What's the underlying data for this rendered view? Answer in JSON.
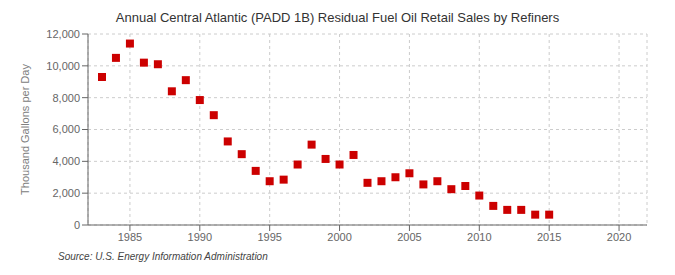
{
  "chart_data": {
    "type": "scatter",
    "title": "Annual Central Atlantic (PADD 1B) Residual Fuel Oil Retail Sales by Refiners",
    "ylabel": "Thousand Gallons per Day",
    "annotations": [
      "Source: U.S. Energy Information Administration"
    ],
    "x": [
      1983,
      1984,
      1985,
      1986,
      1987,
      1988,
      1989,
      1990,
      1991,
      1992,
      1993,
      1994,
      1995,
      1996,
      1997,
      1998,
      1999,
      2000,
      2001,
      2002,
      2003,
      2004,
      2005,
      2006,
      2007,
      2008,
      2009,
      2010,
      2011,
      2012,
      2013,
      2014,
      2015
    ],
    "values": [
      9300,
      10500,
      11400,
      10200,
      10100,
      8400,
      9100,
      7850,
      6900,
      5250,
      4450,
      3400,
      2750,
      2850,
      3800,
      5050,
      4150,
      3800,
      4400,
      2650,
      2750,
      3000,
      3250,
      2550,
      2750,
      2250,
      2450,
      1850,
      1200,
      950,
      950,
      650,
      650
    ],
    "color": "#cc0000",
    "marker": "square",
    "xlim": [
      1982,
      2022
    ],
    "xticks": [
      1985,
      1990,
      1995,
      2000,
      2005,
      2010,
      2015,
      2020
    ],
    "ylim": [
      0,
      12000
    ],
    "yticks": [
      0,
      {
        "value": 2000,
        "label": "2,000"
      },
      {
        "value": 4000,
        "label": "4,000"
      },
      {
        "value": 6000,
        "label": "6,000"
      },
      {
        "value": 8000,
        "label": "8,000"
      },
      {
        "value": 10000,
        "label": "10,000"
      },
      {
        "value": 12000,
        "label": "12,000"
      }
    ],
    "grid": true
  }
}
